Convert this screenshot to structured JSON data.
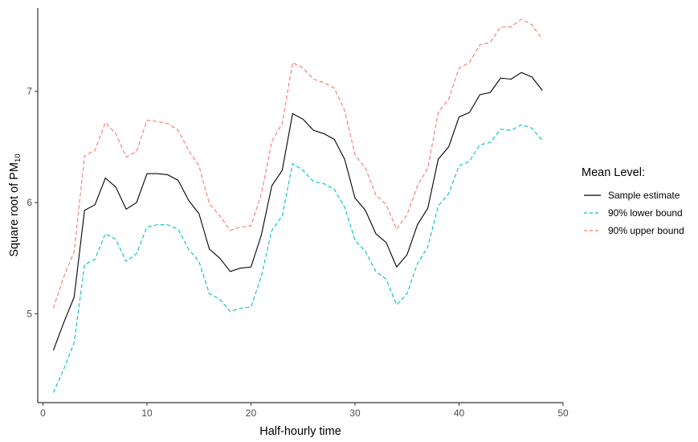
{
  "chart_data": {
    "type": "line",
    "xlabel": "Half-hourly time",
    "ylabel_prefix": "Square root of PM",
    "ylabel_subscript": "10",
    "xlim": [
      -0.5,
      50
    ],
    "ylim": [
      4.2,
      7.75
    ],
    "x_ticks": [
      0,
      10,
      20,
      30,
      40,
      50
    ],
    "y_ticks": [
      5,
      6,
      7
    ],
    "grid": false,
    "legend": {
      "title": "Mean Level:",
      "placement": "right"
    },
    "x": [
      1,
      2,
      3,
      4,
      5,
      6,
      7,
      8,
      9,
      10,
      11,
      12,
      13,
      14,
      15,
      16,
      17,
      18,
      19,
      20,
      21,
      22,
      23,
      24,
      25,
      26,
      27,
      28,
      29,
      30,
      31,
      32,
      33,
      34,
      35,
      36,
      37,
      38,
      39,
      40,
      41,
      42,
      43,
      44,
      45,
      46,
      47,
      48
    ],
    "series": [
      {
        "name": "Sample estimate",
        "color": "#000000",
        "dash": "solid",
        "values": [
          4.67,
          4.92,
          5.15,
          5.93,
          5.98,
          6.22,
          6.14,
          5.94,
          6.0,
          6.26,
          6.26,
          6.25,
          6.2,
          6.02,
          5.9,
          5.58,
          5.5,
          5.38,
          5.41,
          5.42,
          5.71,
          6.15,
          6.29,
          6.8,
          6.75,
          6.65,
          6.62,
          6.57,
          6.39,
          6.04,
          5.93,
          5.72,
          5.64,
          5.42,
          5.53,
          5.8,
          5.95,
          6.39,
          6.5,
          6.77,
          6.81,
          6.97,
          6.99,
          7.12,
          7.11,
          7.17,
          7.13,
          7.01
        ]
      },
      {
        "name": "90% lower bound",
        "color": "#00bfc4",
        "dash": "dashed",
        "values": [
          4.29,
          4.5,
          4.74,
          5.44,
          5.49,
          5.72,
          5.67,
          5.47,
          5.54,
          5.78,
          5.8,
          5.8,
          5.76,
          5.58,
          5.47,
          5.18,
          5.13,
          5.02,
          5.05,
          5.06,
          5.34,
          5.75,
          5.88,
          6.35,
          6.29,
          6.19,
          6.17,
          6.12,
          5.96,
          5.66,
          5.56,
          5.38,
          5.31,
          5.08,
          5.18,
          5.45,
          5.6,
          5.97,
          6.08,
          6.33,
          6.37,
          6.52,
          6.54,
          6.66,
          6.65,
          6.7,
          6.67,
          6.56
        ]
      },
      {
        "name": "90% upper bound",
        "color": "#f8766d",
        "dash": "dashed",
        "values": [
          5.05,
          5.33,
          5.56,
          6.42,
          6.47,
          6.72,
          6.62,
          6.41,
          6.46,
          6.74,
          6.73,
          6.71,
          6.65,
          6.47,
          6.33,
          5.99,
          5.88,
          5.75,
          5.78,
          5.79,
          6.08,
          6.55,
          6.71,
          7.26,
          7.21,
          7.11,
          7.08,
          7.03,
          6.83,
          6.43,
          6.31,
          6.07,
          5.98,
          5.76,
          5.89,
          6.15,
          6.31,
          6.81,
          6.93,
          7.21,
          7.26,
          7.42,
          7.44,
          7.58,
          7.58,
          7.65,
          7.6,
          7.47
        ]
      }
    ]
  }
}
